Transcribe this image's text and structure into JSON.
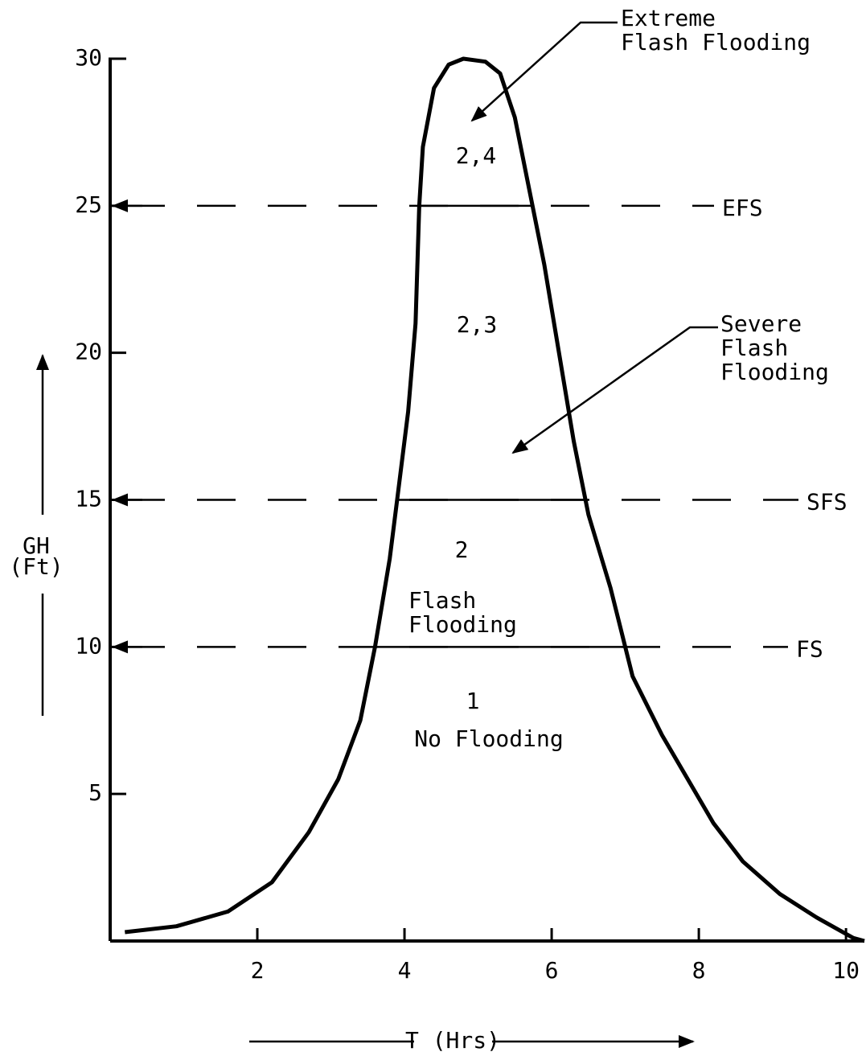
{
  "chart_data": {
    "type": "line",
    "x": [
      0.2,
      0.9,
      1.6,
      2.2,
      2.7,
      3.1,
      3.4,
      3.6,
      3.8,
      3.9,
      4.05,
      4.15,
      4.2,
      4.25,
      4.4,
      4.6,
      4.8,
      5.1,
      5.3,
      5.5,
      5.7,
      5.9,
      6.1,
      6.3,
      6.5,
      6.8,
      7.1,
      7.5,
      8.2,
      8.6,
      9.1,
      9.6,
      10.1,
      10.25
    ],
    "values": [
      0.3,
      0.5,
      1,
      2,
      3.7,
      5.5,
      7.5,
      10,
      13,
      15,
      18,
      21,
      25,
      27,
      29,
      29.8,
      30,
      29.9,
      29.5,
      28,
      25.5,
      23,
      20,
      17,
      14.5,
      12,
      9,
      7,
      4,
      2.7,
      1.6,
      0.8,
      0.1,
      0
    ],
    "color": "#000000",
    "xlim": [
      0,
      10.25
    ],
    "ylim": [
      0,
      30
    ],
    "xticks": [
      2,
      4,
      6,
      8,
      10
    ],
    "yticks": [
      5,
      10,
      15,
      20,
      25,
      30
    ],
    "x_label": "T (Hrs)",
    "y_label": [
      "GH",
      "(Ft)"
    ],
    "thresholds": [
      {
        "label": "EFS",
        "value": 25
      },
      {
        "label": "SFS",
        "value": 15
      },
      {
        "label": "FS",
        "value": 10
      }
    ],
    "regions": [
      [
        "2,4"
      ],
      [
        "2,3"
      ],
      [
        "2"
      ],
      [
        "Flash",
        "Flooding"
      ],
      [
        "1"
      ],
      [
        "No Flooding"
      ]
    ],
    "annotations": [
      [
        "Extreme",
        "Flash Flooding"
      ],
      [
        "Severe",
        "Flash",
        "Flooding"
      ]
    ]
  }
}
